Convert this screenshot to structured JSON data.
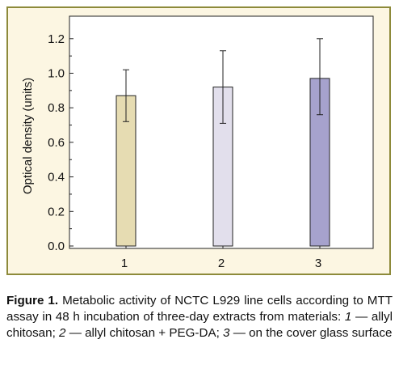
{
  "chart_data": {
    "type": "bar",
    "categories": [
      "1",
      "2",
      "3"
    ],
    "values": [
      0.87,
      0.92,
      0.97
    ],
    "error_low": [
      0.72,
      0.71,
      0.76
    ],
    "error_high": [
      1.02,
      1.13,
      1.2
    ],
    "bar_colors": [
      "#e6dcb2",
      "#e2dfec",
      "#a6a2cd"
    ],
    "ylabel": "Optical density (units)",
    "xlabel": "",
    "ylim": [
      0,
      1.3
    ],
    "yticks": [
      "0.0",
      "0.2",
      "0.4",
      "0.6",
      "0.8",
      "1.0",
      "1.2"
    ],
    "grid": false
  },
  "colors": {
    "frame_background": "#fcf6e2",
    "frame_border": "#8d8a3a"
  },
  "caption": {
    "label": "Figure 1.",
    "text_1": " Metabolic activity of NCTC L929 line cells according to MTT assay in 48 h incubation of three-day extracts from materials: ",
    "item_1_num": "1",
    "item_1_text": " — allyl chitosan; ",
    "item_2_num": "2",
    "item_2_text": " — allyl chitosan + PEG-DA; ",
    "item_3_num": "3",
    "item_3_text": " — on the cover glass surface"
  }
}
